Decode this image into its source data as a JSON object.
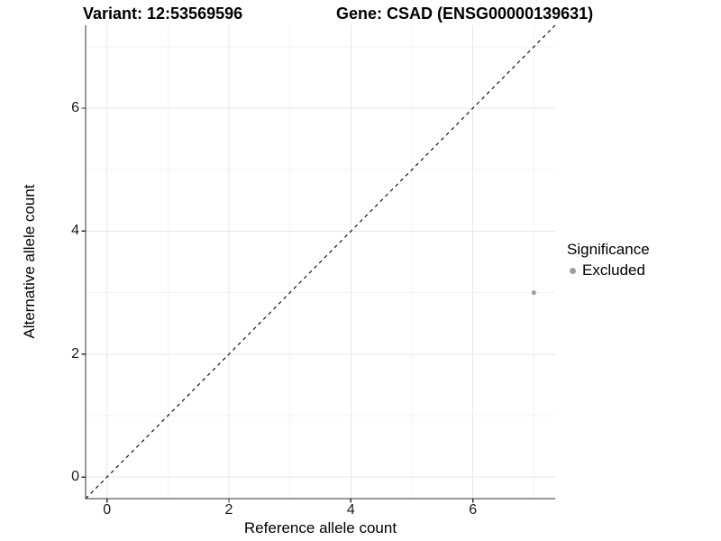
{
  "chart_data": {
    "type": "scatter",
    "title_left": "Variant: 12:53569596",
    "title_right": "Gene: CSAD (ENSG00000139631)",
    "xlabel": "Reference allele count",
    "ylabel": "Alternative allele count",
    "xlim": [
      -0.35,
      7.35
    ],
    "ylim": [
      -0.35,
      7.35
    ],
    "x_ticks": [
      0,
      2,
      4,
      6
    ],
    "y_ticks": [
      0,
      2,
      4,
      6
    ],
    "x_minor_ticks": [
      1,
      3,
      5,
      7
    ],
    "y_minor_ticks": [
      1,
      3,
      5,
      7
    ],
    "grid": true,
    "legend_position": "right",
    "reference_line": {
      "slope": 1,
      "intercept": 0,
      "style": "dashed",
      "color": "#000000"
    },
    "series": [
      {
        "name": "Excluded",
        "color": "#9e9e9e",
        "points": [
          {
            "x": 7,
            "y": 3
          }
        ]
      }
    ],
    "legend": {
      "title": "Significance",
      "entries": [
        {
          "label": "Excluded",
          "color": "#9e9e9e"
        }
      ]
    }
  },
  "colors": {
    "grid_major": "#e7e7e7",
    "grid_minor": "#f3f3f3",
    "axis_line": "#333333",
    "tick_mark": "#333333",
    "tick_text": "#1a1a1a"
  }
}
